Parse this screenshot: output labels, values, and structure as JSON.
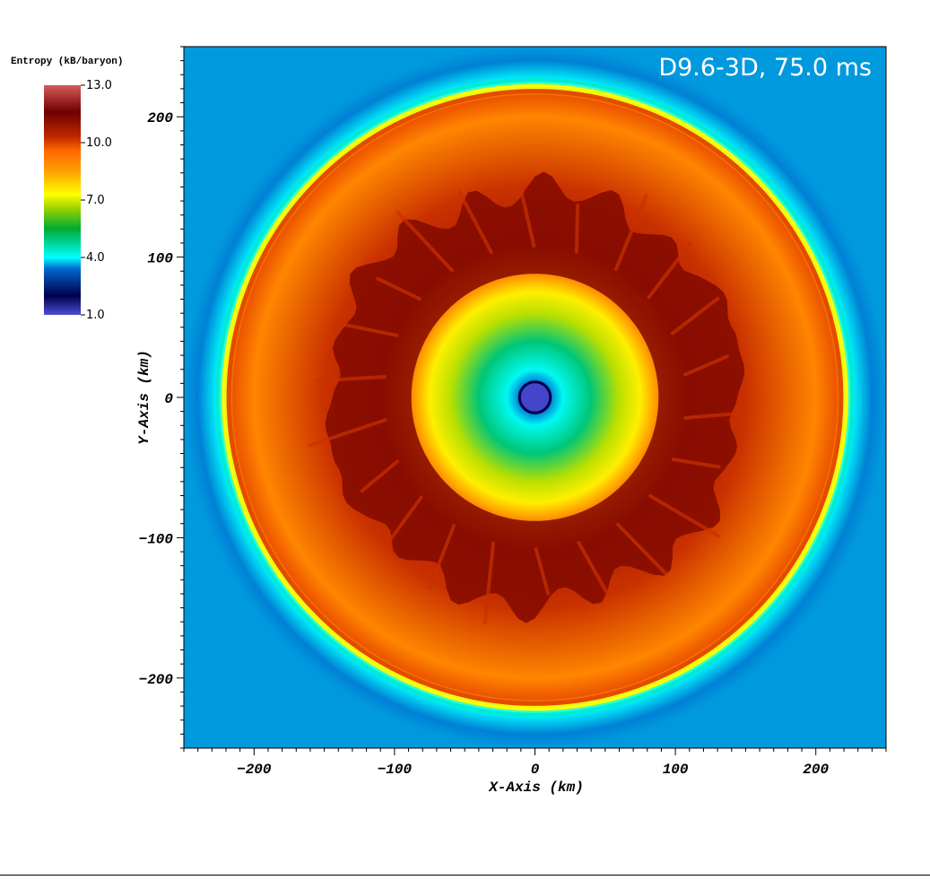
{
  "chart_data": {
    "type": "heatmap",
    "title": "",
    "annotation": "D9.6-3D, 75.0 ms",
    "xlabel": "X-Axis (km)",
    "ylabel": "Y-Axis (km)",
    "xlim": [
      -250,
      250
    ],
    "ylim": [
      -250,
      250
    ],
    "x_ticks": [
      -200,
      -100,
      0,
      100,
      200
    ],
    "y_ticks": [
      200,
      100,
      0,
      -100,
      -200
    ],
    "x_tick_labels": [
      "−200",
      "−100",
      "0",
      "100",
      "200"
    ],
    "y_tick_labels": [
      "200",
      "100",
      "0",
      "−100",
      "−200"
    ],
    "colorbar": {
      "title": "Entropy (kB/baryon)",
      "range": [
        1.0,
        13.0
      ],
      "ticks": [
        13.0,
        10.0,
        7.0,
        4.0,
        1.0
      ],
      "tick_labels": [
        "13.0",
        "10.0",
        "7.0",
        "4.0",
        "1.0"
      ],
      "colors": [
        {
          "value": 1.0,
          "color": "#4a4ed6"
        },
        {
          "value": 2.0,
          "color": "#00004a"
        },
        {
          "value": 3.4,
          "color": "#0066cc"
        },
        {
          "value": 4.0,
          "color": "#00ffff"
        },
        {
          "value": 5.5,
          "color": "#00aa33"
        },
        {
          "value": 6.6,
          "color": "#9ed400"
        },
        {
          "value": 7.3,
          "color": "#ffff00"
        },
        {
          "value": 8.5,
          "color": "#ffa000"
        },
        {
          "value": 9.6,
          "color": "#ff6600"
        },
        {
          "value": 10.3,
          "color": "#c02800"
        },
        {
          "value": 11.6,
          "color": "#6e0000"
        },
        {
          "value": 13.0,
          "color": "#d75a5a"
        }
      ]
    },
    "field_profile": [
      {
        "r_km": 0,
        "entropy": 1.2
      },
      {
        "r_km": 10,
        "entropy": 1.4
      },
      {
        "r_km": 13,
        "entropy": 3.6
      },
      {
        "r_km": 20,
        "entropy": 4.1
      },
      {
        "r_km": 40,
        "entropy": 5.0
      },
      {
        "r_km": 60,
        "entropy": 6.8
      },
      {
        "r_km": 75,
        "entropy": 7.5
      },
      {
        "r_km": 90,
        "entropy": 9.2
      },
      {
        "r_km": 110,
        "entropy": 10.6
      },
      {
        "r_km": 150,
        "entropy": 10.2
      },
      {
        "r_km": 200,
        "entropy": 9.0
      },
      {
        "r_km": 215,
        "entropy": 9.8
      },
      {
        "r_km": 220,
        "entropy": 7.4
      },
      {
        "r_km": 225,
        "entropy": 4.0
      },
      {
        "r_km": 240,
        "entropy": 3.5
      },
      {
        "r_km": 250,
        "entropy": 3.6
      }
    ],
    "background_entropy": 3.6,
    "shock_radius_km": 223,
    "plume_inner_km": 100,
    "plume_outer_km": 160
  }
}
